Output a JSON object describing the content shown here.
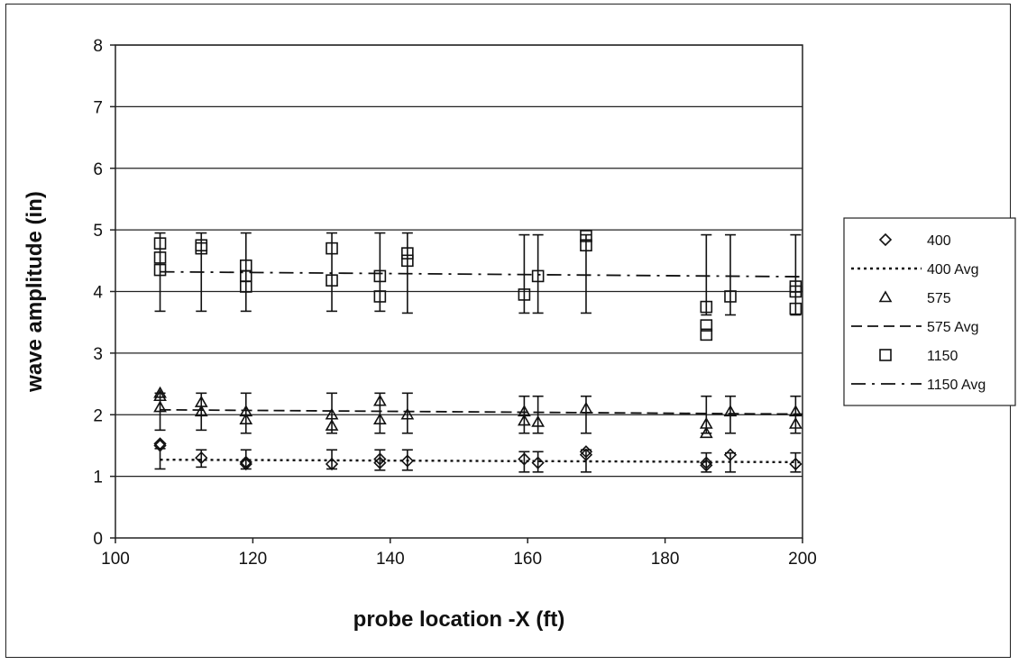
{
  "chart_data": {
    "type": "scatter",
    "title": "",
    "xlabel": "probe location -X (ft)",
    "ylabel": "wave amplitude (in)",
    "xlim": [
      100,
      200
    ],
    "ylim": [
      0,
      8
    ],
    "x_ticks": [
      100,
      120,
      140,
      160,
      180,
      200
    ],
    "y_ticks": [
      0,
      1,
      2,
      3,
      4,
      5,
      6,
      7,
      8
    ],
    "grid": "horizontal",
    "legend_position": "right",
    "series": [
      {
        "name": "400",
        "marker": "diamond",
        "points": [
          [
            106.5,
            1.53
          ],
          [
            106.5,
            1.5
          ],
          [
            112.5,
            1.3
          ],
          [
            119,
            1.23
          ],
          [
            119,
            1.2
          ],
          [
            131.5,
            1.2
          ],
          [
            138.5,
            1.28
          ],
          [
            138.5,
            1.22
          ],
          [
            142.5,
            1.25
          ],
          [
            159.5,
            1.28
          ],
          [
            161.5,
            1.22
          ],
          [
            168.5,
            1.4
          ],
          [
            168.5,
            1.35
          ],
          [
            186,
            1.22
          ],
          [
            186,
            1.18
          ],
          [
            189.5,
            1.35
          ],
          [
            199,
            1.2
          ]
        ],
        "error_bars": [
          [
            106.5,
            1.12,
            1.45
          ],
          [
            112.5,
            1.15,
            1.43
          ],
          [
            119,
            1.12,
            1.43
          ],
          [
            131.5,
            1.12,
            1.43
          ],
          [
            138.5,
            1.1,
            1.43
          ],
          [
            142.5,
            1.1,
            1.43
          ],
          [
            159.5,
            1.07,
            1.4
          ],
          [
            161.5,
            1.07,
            1.4
          ],
          [
            168.5,
            1.07,
            1.43
          ],
          [
            186,
            1.07,
            1.38
          ],
          [
            189.5,
            1.07,
            1.38
          ],
          [
            199,
            1.07,
            1.38
          ]
        ]
      },
      {
        "name": "400 Avg",
        "line_style": "dotted",
        "x": [
          106.5,
          200
        ],
        "y": [
          1.27,
          1.23
        ]
      },
      {
        "name": "575",
        "marker": "triangle",
        "points": [
          [
            106.5,
            2.35
          ],
          [
            106.5,
            2.3
          ],
          [
            106.5,
            2.12
          ],
          [
            112.5,
            2.2
          ],
          [
            112.5,
            2.05
          ],
          [
            119,
            2.05
          ],
          [
            119,
            1.92
          ],
          [
            131.5,
            2.0
          ],
          [
            131.5,
            1.82
          ],
          [
            138.5,
            2.22
          ],
          [
            138.5,
            1.92
          ],
          [
            142.5,
            2.0
          ],
          [
            159.5,
            2.05
          ],
          [
            159.5,
            1.9
          ],
          [
            161.5,
            1.88
          ],
          [
            168.5,
            2.1
          ],
          [
            186,
            1.85
          ],
          [
            186,
            1.7
          ],
          [
            189.5,
            2.05
          ],
          [
            199,
            2.05
          ],
          [
            199,
            1.85
          ]
        ],
        "error_bars": [
          [
            106.5,
            1.75,
            2.35
          ],
          [
            112.5,
            1.75,
            2.35
          ],
          [
            119,
            1.7,
            2.35
          ],
          [
            131.5,
            1.7,
            2.35
          ],
          [
            138.5,
            1.7,
            2.35
          ],
          [
            142.5,
            1.7,
            2.35
          ],
          [
            159.5,
            1.7,
            2.3
          ],
          [
            161.5,
            1.7,
            2.3
          ],
          [
            168.5,
            1.7,
            2.3
          ],
          [
            186,
            1.7,
            2.3
          ],
          [
            189.5,
            1.7,
            2.3
          ],
          [
            199,
            1.7,
            2.3
          ]
        ]
      },
      {
        "name": "575 Avg",
        "line_style": "dashed",
        "x": [
          106.5,
          200
        ],
        "y": [
          2.08,
          2.01
        ]
      },
      {
        "name": "1150",
        "marker": "square",
        "points": [
          [
            106.5,
            4.78
          ],
          [
            106.5,
            4.55
          ],
          [
            106.5,
            4.35
          ],
          [
            112.5,
            4.75
          ],
          [
            112.5,
            4.7
          ],
          [
            119,
            4.42
          ],
          [
            119,
            4.25
          ],
          [
            119,
            4.08
          ],
          [
            131.5,
            4.7
          ],
          [
            131.5,
            4.18
          ],
          [
            138.5,
            4.25
          ],
          [
            138.5,
            3.92
          ],
          [
            142.5,
            4.62
          ],
          [
            142.5,
            4.5
          ],
          [
            159.5,
            3.95
          ],
          [
            161.5,
            4.25
          ],
          [
            168.5,
            4.9
          ],
          [
            168.5,
            4.75
          ],
          [
            186,
            3.75
          ],
          [
            186,
            3.45
          ],
          [
            186,
            3.3
          ],
          [
            189.5,
            3.92
          ],
          [
            199,
            4.08
          ],
          [
            199,
            4.0
          ],
          [
            199,
            3.72
          ]
        ],
        "error_bars": [
          [
            106.5,
            3.68,
            4.95
          ],
          [
            112.5,
            3.68,
            4.95
          ],
          [
            119,
            3.68,
            4.95
          ],
          [
            131.5,
            3.68,
            4.95
          ],
          [
            138.5,
            3.68,
            4.95
          ],
          [
            142.5,
            3.65,
            4.95
          ],
          [
            159.5,
            3.65,
            4.92
          ],
          [
            161.5,
            3.65,
            4.92
          ],
          [
            168.5,
            3.65,
            4.92
          ],
          [
            186,
            3.62,
            4.92
          ],
          [
            189.5,
            3.62,
            4.92
          ],
          [
            199,
            3.62,
            4.92
          ]
        ]
      },
      {
        "name": "1150 Avg",
        "line_style": "dashdot",
        "x": [
          106.5,
          200
        ],
        "y": [
          4.32,
          4.24
        ]
      }
    ]
  }
}
